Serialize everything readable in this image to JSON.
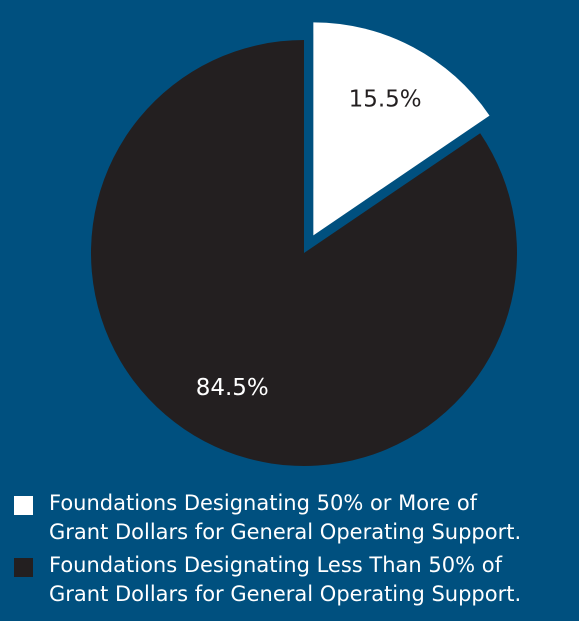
{
  "colors": {
    "background": "#00507f",
    "text": "#ffffff"
  },
  "chart_data": {
    "type": "pie",
    "title": "",
    "start_angle_deg": 0,
    "direction": "clockwise",
    "exploded_slice": 0,
    "slices": [
      {
        "label": "15.5%",
        "value": 15.5,
        "color": "#ffffff",
        "label_color": "#231f20",
        "legend": "Foundations Designating 50% or More of\nGrant Dollars for General Operating Support."
      },
      {
        "label": "84.5%",
        "value": 84.5,
        "color": "#231f20",
        "label_color": "#ffffff",
        "legend": "Foundations Designating Less Than 50% of\nGrant Dollars for General Operating Support."
      }
    ]
  }
}
